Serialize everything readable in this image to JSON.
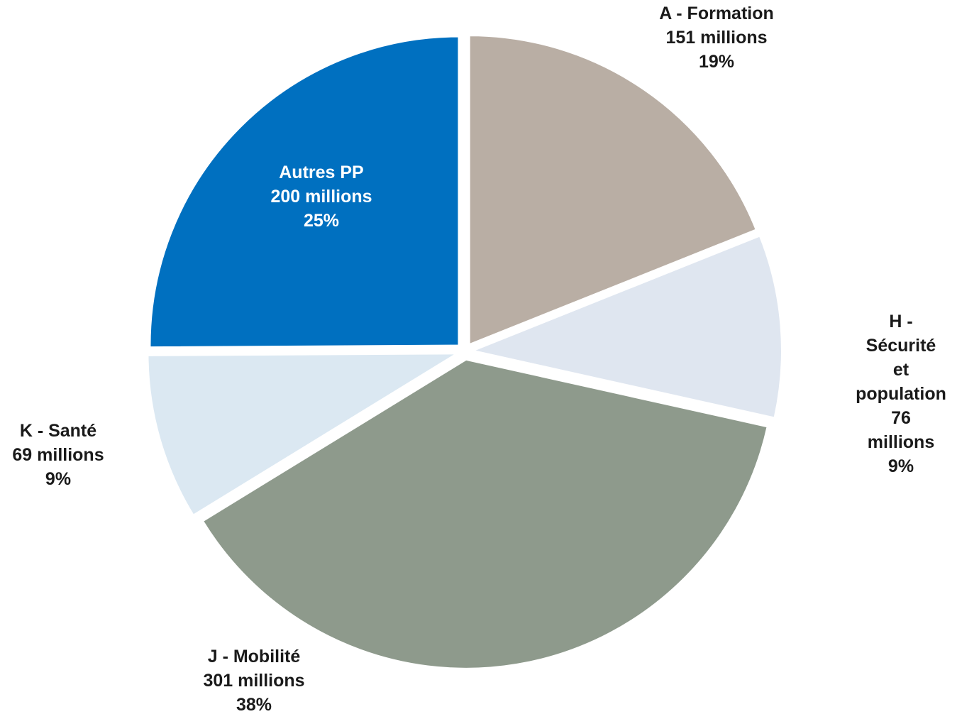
{
  "chart_data": {
    "type": "pie",
    "categories": [
      "A - Formation",
      "H - Sécurité et\npopulation",
      "J - Mobilité",
      "K - Santé",
      "Autres PP"
    ],
    "values": [
      151,
      76,
      301,
      69,
      200
    ],
    "value_labels": [
      "151 millions",
      "76 millions",
      "301 millions",
      "69 millions",
      "200 millions"
    ],
    "percentages": [
      19,
      9,
      38,
      9,
      25
    ],
    "percentage_labels": [
      "19%",
      "9%",
      "38%",
      "9%",
      "25%"
    ],
    "colors": [
      "#b9aea4",
      "#dfe6f0",
      "#8e9a8c",
      "#dbe8f2",
      "#0070c0"
    ]
  }
}
